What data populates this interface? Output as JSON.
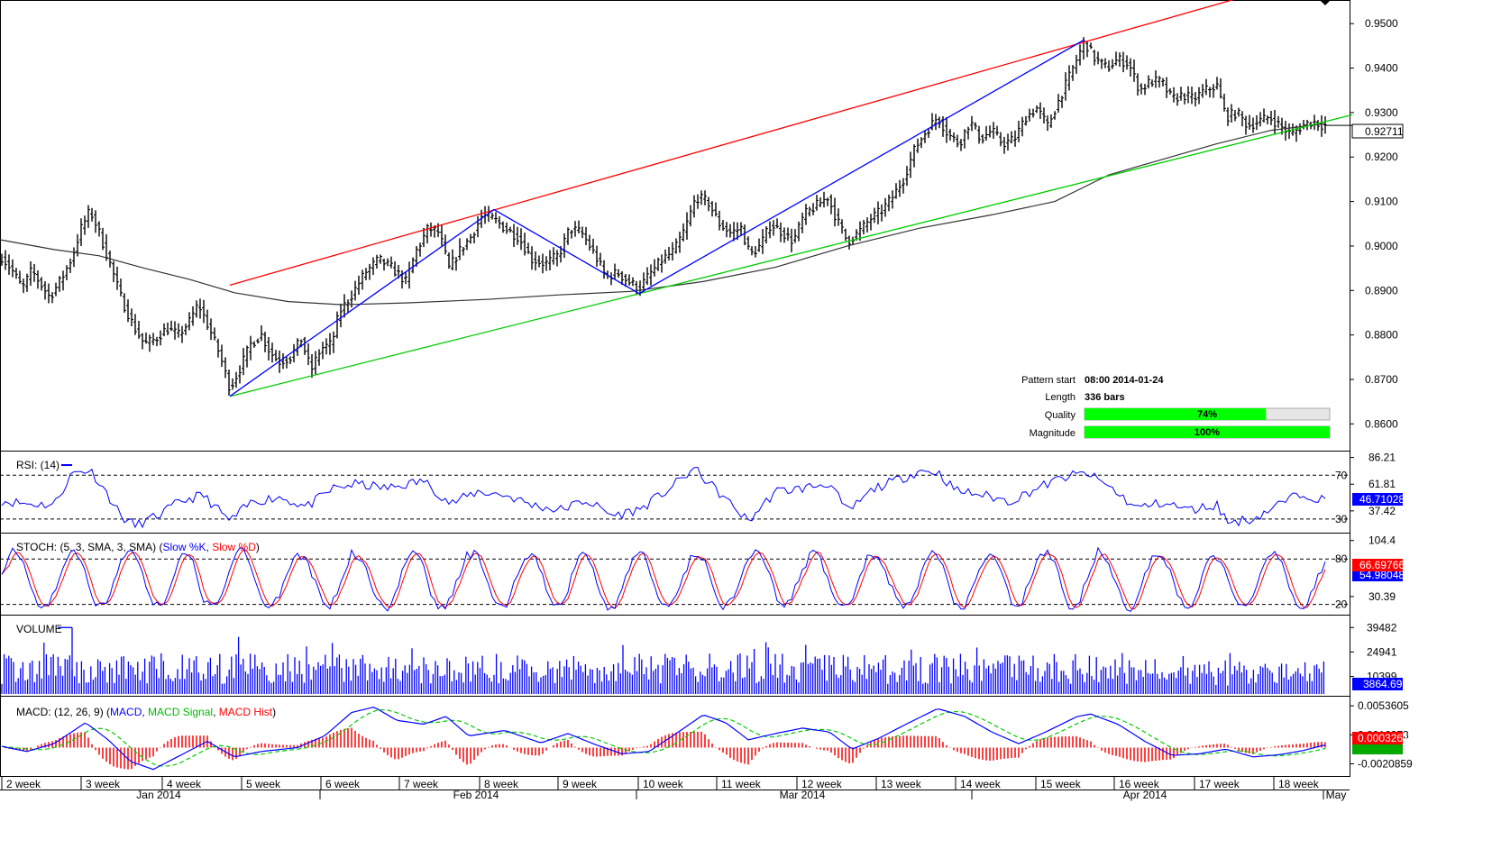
{
  "chart_data": [
    {
      "type": "candlestick",
      "ylim": [
        0.855,
        0.9545
      ],
      "yticks": [
        "0.9500",
        "0.9400",
        "0.9300",
        "0.9200",
        "0.9100",
        "0.9000",
        "0.8900",
        "0.8800",
        "0.8700",
        "0.8600"
      ],
      "last_price": "0.92711",
      "price_path": [
        [
          0,
          0.898
        ],
        [
          12,
          0.895
        ],
        [
          25,
          0.8905
        ],
        [
          35,
          0.8945
        ],
        [
          45,
          0.8915
        ],
        [
          55,
          0.8885
        ],
        [
          68,
          0.8925
        ],
        [
          80,
          0.8975
        ],
        [
          90,
          0.904
        ],
        [
          100,
          0.908
        ],
        [
          110,
          0.903
        ],
        [
          122,
          0.896
        ],
        [
          135,
          0.888
        ],
        [
          148,
          0.882
        ],
        [
          160,
          0.878
        ],
        [
          172,
          0.879
        ],
        [
          185,
          0.8815
        ],
        [
          198,
          0.88
        ],
        [
          210,
          0.883
        ],
        [
          220,
          0.887
        ],
        [
          232,
          0.8815
        ],
        [
          243,
          0.876
        ],
        [
          255,
          0.868
        ],
        [
          265,
          0.872
        ],
        [
          278,
          0.878
        ],
        [
          290,
          0.88
        ],
        [
          300,
          0.876
        ],
        [
          310,
          0.874
        ],
        [
          322,
          0.875
        ],
        [
          334,
          0.879
        ],
        [
          345,
          0.872
        ],
        [
          356,
          0.877
        ],
        [
          368,
          0.878
        ],
        [
          376,
          0.885
        ],
        [
          390,
          0.889
        ],
        [
          405,
          0.894
        ],
        [
          420,
          0.897
        ],
        [
          435,
          0.895
        ],
        [
          450,
          0.892
        ],
        [
          462,
          0.899
        ],
        [
          475,
          0.904
        ],
        [
          487,
          0.903
        ],
        [
          498,
          0.895
        ],
        [
          510,
          0.899
        ],
        [
          522,
          0.902
        ],
        [
          535,
          0.907
        ],
        [
          548,
          0.906
        ],
        [
          560,
          0.904
        ],
        [
          575,
          0.902
        ],
        [
          590,
          0.897
        ],
        [
          605,
          0.896
        ],
        [
          620,
          0.898
        ],
        [
          632,
          0.904
        ],
        [
          645,
          0.903
        ],
        [
          660,
          0.898
        ],
        [
          672,
          0.893
        ],
        [
          685,
          0.894
        ],
        [
          697,
          0.892
        ],
        [
          709,
          0.8905
        ],
        [
          722,
          0.894
        ],
        [
          735,
          0.897
        ],
        [
          748,
          0.899
        ],
        [
          760,
          0.904
        ],
        [
          772,
          0.911
        ],
        [
          785,
          0.91
        ],
        [
          798,
          0.905
        ],
        [
          810,
          0.903
        ],
        [
          822,
          0.904
        ],
        [
          832,
          0.898
        ],
        [
          843,
          0.9
        ],
        [
          855,
          0.905
        ],
        [
          868,
          0.903
        ],
        [
          880,
          0.901
        ],
        [
          892,
          0.907
        ],
        [
          905,
          0.909
        ],
        [
          918,
          0.911
        ],
        [
          928,
          0.906
        ],
        [
          940,
          0.901
        ],
        [
          952,
          0.903
        ],
        [
          965,
          0.906
        ],
        [
          978,
          0.908
        ],
        [
          990,
          0.911
        ],
        [
          1002,
          0.915
        ],
        [
          1015,
          0.922
        ],
        [
          1028,
          0.926
        ],
        [
          1040,
          0.929
        ],
        [
          1052,
          0.925
        ],
        [
          1064,
          0.923
        ],
        [
          1076,
          0.928
        ],
        [
          1088,
          0.924
        ],
        [
          1100,
          0.926
        ],
        [
          1112,
          0.923
        ],
        [
          1125,
          0.924
        ],
        [
          1138,
          0.929
        ],
        [
          1150,
          0.931
        ],
        [
          1162,
          0.927
        ],
        [
          1175,
          0.933
        ],
        [
          1188,
          0.939
        ],
        [
          1203,
          0.946
        ],
        [
          1215,
          0.942
        ],
        [
          1228,
          0.94
        ],
        [
          1240,
          0.942
        ],
        [
          1252,
          0.941
        ],
        [
          1264,
          0.935
        ],
        [
          1276,
          0.937
        ],
        [
          1288,
          0.937
        ],
        [
          1300,
          0.933
        ],
        [
          1312,
          0.934
        ],
        [
          1324,
          0.933
        ],
        [
          1336,
          0.935
        ],
        [
          1350,
          0.936
        ],
        [
          1360,
          0.929
        ],
        [
          1372,
          0.93
        ],
        [
          1384,
          0.927
        ],
        [
          1396,
          0.928
        ],
        [
          1408,
          0.929
        ],
        [
          1420,
          0.927
        ],
        [
          1432,
          0.925
        ],
        [
          1444,
          0.927
        ],
        [
          1456,
          0.928
        ],
        [
          1468,
          0.9271
        ]
      ],
      "sma_path": [
        [
          0,
          0.9014
        ],
        [
          60,
          0.8992
        ],
        [
          110,
          0.8978
        ],
        [
          160,
          0.895
        ],
        [
          210,
          0.8925
        ],
        [
          260,
          0.8895
        ],
        [
          320,
          0.8875
        ],
        [
          380,
          0.8868
        ],
        [
          450,
          0.8872
        ],
        [
          540,
          0.888
        ],
        [
          620,
          0.889
        ],
        [
          700,
          0.8898
        ],
        [
          780,
          0.892
        ],
        [
          860,
          0.8952
        ],
        [
          940,
          0.9
        ],
        [
          1020,
          0.904
        ],
        [
          1100,
          0.907
        ],
        [
          1170,
          0.91
        ],
        [
          1230,
          0.916
        ],
        [
          1290,
          0.9195
        ],
        [
          1350,
          0.923
        ],
        [
          1410,
          0.926
        ],
        [
          1470,
          0.9275
        ]
      ],
      "resistance_line": {
        "from": [
          255,
          0.8912
        ],
        "to": [
          1370,
          0.9555
        ],
        "color": "#ff0000"
      },
      "support_line": {
        "from": [
          255,
          0.8662
        ],
        "to": [
          1500,
          0.9295
        ],
        "color": "#00cc00"
      },
      "zigzag": [
        [
          255,
          0.8662
        ],
        [
          548,
          0.9082
        ],
        [
          709,
          0.8893
        ],
        [
          1203,
          0.9464
        ]
      ],
      "pattern_info": {
        "pattern_start_label": "Pattern start",
        "pattern_start_value": "08:00 2014-01-24",
        "length_label": "Length",
        "length_value": "336 bars",
        "quality_label": "Quality",
        "quality_value": "74%",
        "quality_fraction": 0.74,
        "magnitude_label": "Magnitude",
        "magnitude_value": "100%",
        "magnitude_fraction": 1.0
      }
    },
    {
      "type": "line",
      "title": "RSI: (14)",
      "ylim": [
        20,
        90
      ],
      "yticks": [
        "86.21",
        "61.81",
        "37.42"
      ],
      "levels": [
        70,
        30
      ],
      "level_labels": [
        "70",
        "30"
      ],
      "last_value": "46.71028",
      "path": [
        [
          0,
          47
        ],
        [
          30,
          44
        ],
        [
          60,
          43
        ],
        [
          80,
          72
        ],
        [
          100,
          75
        ],
        [
          115,
          58
        ],
        [
          135,
          32
        ],
        [
          150,
          24
        ],
        [
          175,
          33
        ],
        [
          200,
          46
        ],
        [
          225,
          52
        ],
        [
          255,
          28
        ],
        [
          280,
          46
        ],
        [
          310,
          50
        ],
        [
          340,
          41
        ],
        [
          370,
          58
        ],
        [
          395,
          62
        ],
        [
          430,
          58
        ],
        [
          470,
          65
        ],
        [
          500,
          44
        ],
        [
          530,
          55
        ],
        [
          560,
          52
        ],
        [
          590,
          43
        ],
        [
          620,
          38
        ],
        [
          650,
          47
        ],
        [
          680,
          33
        ],
        [
          710,
          39
        ],
        [
          740,
          56
        ],
        [
          770,
          76
        ],
        [
          800,
          52
        ],
        [
          830,
          28
        ],
        [
          860,
          55
        ],
        [
          890,
          58
        ],
        [
          920,
          63
        ],
        [
          940,
          36
        ],
        [
          970,
          58
        ],
        [
          1000,
          67
        ],
        [
          1020,
          74
        ],
        [
          1040,
          73
        ],
        [
          1060,
          56
        ],
        [
          1090,
          52
        ],
        [
          1120,
          46
        ],
        [
          1150,
          58
        ],
        [
          1180,
          68
        ],
        [
          1205,
          72
        ],
        [
          1230,
          60
        ],
        [
          1260,
          40
        ],
        [
          1290,
          45
        ],
        [
          1320,
          38
        ],
        [
          1350,
          43
        ],
        [
          1362,
          27
        ],
        [
          1390,
          30
        ],
        [
          1420,
          44
        ],
        [
          1445,
          54
        ],
        [
          1468,
          47
        ]
      ]
    },
    {
      "type": "line",
      "title_prefix": "STOCH: (5, 3, SMA, 3, SMA) (",
      "series": [
        {
          "name": "Slow %K",
          "color": "#0000ff"
        },
        {
          "name": "Slow %D",
          "color": "#ff0000"
        }
      ],
      "ylim": [
        10,
        110
      ],
      "yticks": [
        "104.4",
        "30.39"
      ],
      "levels": [
        80,
        20
      ],
      "level_labels": [
        "80",
        "20"
      ],
      "last_k": "66.69766",
      "last_d": "54.98048"
    },
    {
      "type": "bar",
      "title": "VOLUME",
      "ylim": [
        0,
        45000
      ],
      "yticks": [
        "39482",
        "24941",
        "10399"
      ],
      "last_value": "3864.69"
    },
    {
      "type": "line",
      "title_prefix": "MACD: (12, 26, 9) (",
      "series": [
        {
          "name": "MACD",
          "color": "#0000ff"
        },
        {
          "name": "MACD Signal",
          "color": "#00cc00"
        },
        {
          "name": "MACD Hist",
          "color": "#ff0000"
        }
      ],
      "ylim": [
        -0.0033,
        0.0063
      ],
      "yticks": [
        "0.0053605",
        "0.0016373",
        "-0.0020859"
      ],
      "last_value": "0.0003261",
      "path": [
        [
          0,
          0.0002
        ],
        [
          30,
          -0.0005
        ],
        [
          60,
          0.0005
        ],
        [
          95,
          0.0032
        ],
        [
          120,
          0.001
        ],
        [
          145,
          -0.0018
        ],
        [
          170,
          -0.0028
        ],
        [
          200,
          -0.001
        ],
        [
          230,
          0.0008
        ],
        [
          260,
          -0.0012
        ],
        [
          290,
          -0.0005
        ],
        [
          330,
          0.0
        ],
        [
          360,
          0.0015
        ],
        [
          390,
          0.0045
        ],
        [
          415,
          0.0052
        ],
        [
          440,
          0.0035
        ],
        [
          470,
          0.003
        ],
        [
          495,
          0.004
        ],
        [
          520,
          0.0015
        ],
        [
          560,
          0.0022
        ],
        [
          600,
          0.0006
        ],
        [
          630,
          0.0018
        ],
        [
          660,
          0.0004
        ],
        [
          690,
          -0.0008
        ],
        [
          720,
          -0.0005
        ],
        [
          750,
          0.0018
        ],
        [
          780,
          0.0042
        ],
        [
          805,
          0.0032
        ],
        [
          830,
          0.001
        ],
        [
          860,
          0.0018
        ],
        [
          890,
          0.0025
        ],
        [
          920,
          0.002
        ],
        [
          945,
          -0.0002
        ],
        [
          975,
          0.0012
        ],
        [
          1005,
          0.003
        ],
        [
          1040,
          0.005
        ],
        [
          1070,
          0.004
        ],
        [
          1100,
          0.002
        ],
        [
          1130,
          0.0005
        ],
        [
          1160,
          0.002
        ],
        [
          1195,
          0.004
        ],
        [
          1210,
          0.0043
        ],
        [
          1240,
          0.003
        ],
        [
          1270,
          0.0008
        ],
        [
          1300,
          -0.001
        ],
        [
          1330,
          -0.0008
        ],
        [
          1360,
          -0.0002
        ],
        [
          1390,
          -0.0012
        ],
        [
          1420,
          -0.0009
        ],
        [
          1445,
          -0.0004
        ],
        [
          1468,
          0.0003
        ]
      ]
    }
  ],
  "x_axis": {
    "week_labels": [
      "2 week",
      "3 week",
      "4 week",
      "5 week",
      "6 week",
      "7 week",
      "8 week",
      "9 week",
      "10 week",
      "11 week",
      "12 week",
      "13 week",
      "14 week",
      "15 week",
      "16 week",
      "17 week",
      "18 week"
    ],
    "month_labels": [
      "Jan 2014",
      "Feb 2014",
      "Mar 2014",
      "Apr 2014",
      "May"
    ]
  },
  "colors": {
    "bars": "#000000",
    "sma": "#333333",
    "resistance": "#ff0000",
    "support": "#00cc00",
    "zigzag": "#0000ff",
    "indicator_blue": "#0000ff",
    "indicator_red": "#ff0000",
    "indicator_green": "#00cc00",
    "quality_fill": "#00ff00"
  }
}
